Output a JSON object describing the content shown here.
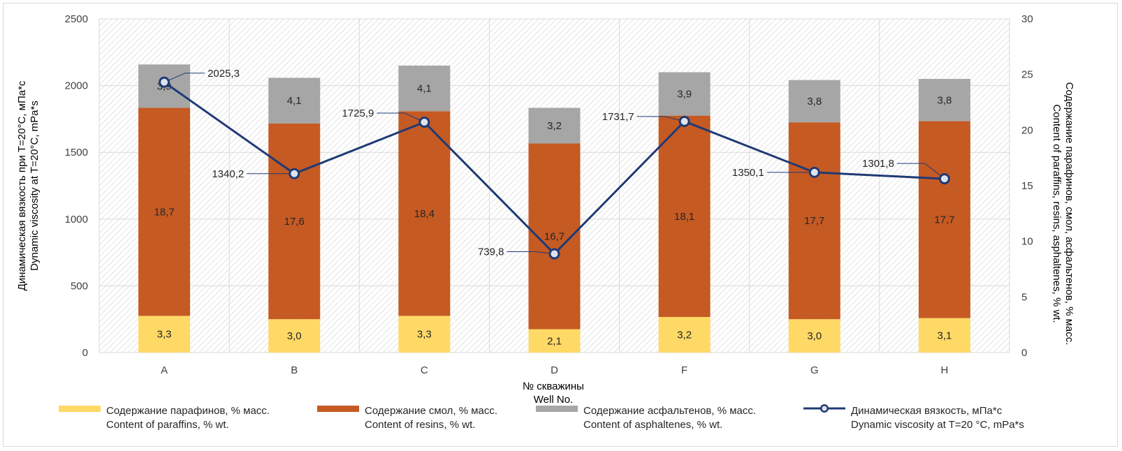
{
  "chart_data": {
    "type": "bar",
    "stacked": true,
    "categories": [
      "A",
      "B",
      "C",
      "D",
      "F",
      "G",
      "H"
    ],
    "series": [
      {
        "name": "Содержание парафинов, % масс.",
        "name_en": "Content of paraffins, % wt.",
        "axis": "right",
        "color": "#FFD966",
        "values": [
          3.3,
          3.0,
          3.3,
          2.1,
          3.2,
          3.0,
          3.1
        ],
        "labels": [
          "3,3",
          "3,0",
          "3,3",
          "2,1",
          "3,2",
          "3,0",
          "3,1"
        ]
      },
      {
        "name": "Содержание смол, % масс.",
        "name_en": "Content of resins, % wt.",
        "axis": "right",
        "color": "#C55A23",
        "values": [
          18.7,
          17.6,
          18.4,
          16.7,
          18.1,
          17.7,
          17.7
        ],
        "labels": [
          "18,7",
          "17,6",
          "18,4",
          "16,7",
          "18,1",
          "17,7",
          "17,7"
        ]
      },
      {
        "name": "Содержание асфальтенов, % масс.",
        "name_en": "Content of asphaltenes, % wt.",
        "axis": "right",
        "color": "#A6A6A6",
        "values": [
          3.9,
          4.1,
          4.1,
          3.2,
          3.9,
          3.8,
          3.8
        ],
        "labels": [
          "3,9",
          "4,1",
          "4,1",
          "3,2",
          "3,9",
          "3,8",
          "3,8"
        ]
      },
      {
        "name": "Динамическая вязкость, мПа*с",
        "name_en": "Dynamic viscosity at T=20 °C, mPa*s",
        "axis": "left",
        "type": "line",
        "color": "#1F3A75",
        "values": [
          2025.3,
          1340.2,
          1725.9,
          739.8,
          1731.7,
          1350.1,
          1301.8
        ],
        "labels": [
          "2025,3",
          "1340,2",
          "1725,9",
          "739,8",
          "1731,7",
          "1350,1",
          "1301,8"
        ]
      }
    ],
    "xlabel": "№ скважины",
    "xlabel_en": "Well No.",
    "ylabel": "Динамическая вязкость при Т=20°С, мПа*с",
    "ylabel_en": "Dynamic viscosity at T=20°C, mPa*s",
    "y2label": "Содержание парафинов, смол, асфальтенов, % масс.",
    "y2label_en": "Content of paraffins, resins, asphaltenes, % wt.",
    "ylim": [
      0,
      2500
    ],
    "y2lim": [
      0,
      30
    ],
    "yticks": [
      "0",
      "500",
      "1000",
      "1500",
      "2000",
      "2500"
    ],
    "y2ticks": [
      "0",
      "5",
      "10",
      "15",
      "20",
      "25",
      "30"
    ],
    "grid": true,
    "legend": "bottom"
  }
}
